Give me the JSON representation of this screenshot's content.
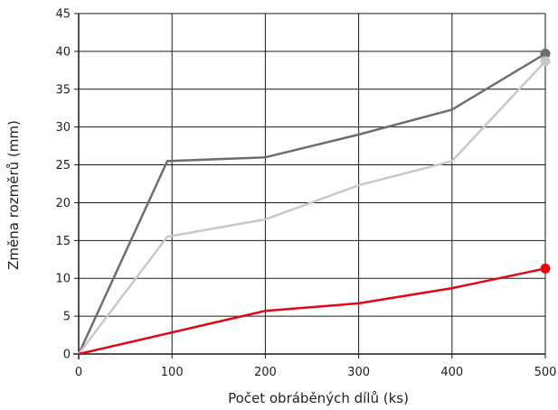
{
  "chart_data": {
    "type": "line",
    "xlabel": "Počet obráběných dílů (ks)",
    "ylabel": "Změna rozměrů (mm)",
    "xlim": [
      0,
      500
    ],
    "ylim": [
      0,
      45
    ],
    "xticks": [
      0,
      100,
      200,
      300,
      400,
      500
    ],
    "yticks": [
      0,
      5,
      10,
      15,
      20,
      25,
      30,
      35,
      40,
      45
    ],
    "grid": true,
    "series": [
      {
        "color": "#6e6e6e",
        "x": [
          0,
          95,
          200,
          300,
          400,
          500
        ],
        "y": [
          0,
          25.5,
          26.0,
          29.0,
          32.3,
          39.7
        ],
        "end_marker": true
      },
      {
        "color": "#c8c8c8",
        "x": [
          0,
          95,
          200,
          300,
          400,
          500
        ],
        "y": [
          0,
          15.5,
          17.8,
          22.3,
          25.5,
          38.7
        ],
        "end_marker": true
      },
      {
        "color": "#e30613",
        "x": [
          0,
          200,
          300,
          400,
          500
        ],
        "y": [
          0,
          5.7,
          6.7,
          8.7,
          11.3
        ],
        "end_marker": true
      }
    ]
  }
}
